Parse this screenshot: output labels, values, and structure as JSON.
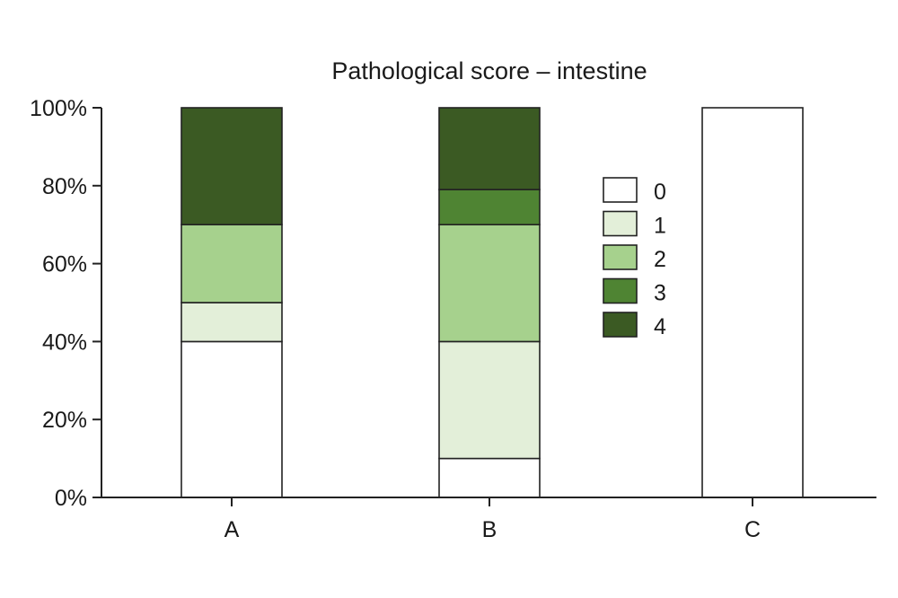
{
  "chart_data": {
    "type": "bar",
    "stacked": true,
    "title": "Pathological score – intestine",
    "xlabel": "",
    "ylabel": "",
    "categories": [
      "A",
      "B",
      "C"
    ],
    "ylim": [
      0,
      100
    ],
    "yticks": [
      0,
      20,
      40,
      60,
      80,
      100
    ],
    "ytick_labels": [
      "0%",
      "20%",
      "40%",
      "60%",
      "80%",
      "100%"
    ],
    "legend_position": "center-right",
    "series": [
      {
        "name": "0",
        "color": "#ffffff",
        "values": [
          40,
          10,
          100
        ]
      },
      {
        "name": "1",
        "color": "#e3efd9",
        "values": [
          10,
          30,
          0
        ]
      },
      {
        "name": "2",
        "color": "#a6d18d",
        "values": [
          20,
          30,
          0
        ]
      },
      {
        "name": "3",
        "color": "#4f8433",
        "values": [
          0,
          9,
          0
        ]
      },
      {
        "name": "4",
        "color": "#3b5a23",
        "values": [
          30,
          21,
          0
        ]
      }
    ]
  }
}
